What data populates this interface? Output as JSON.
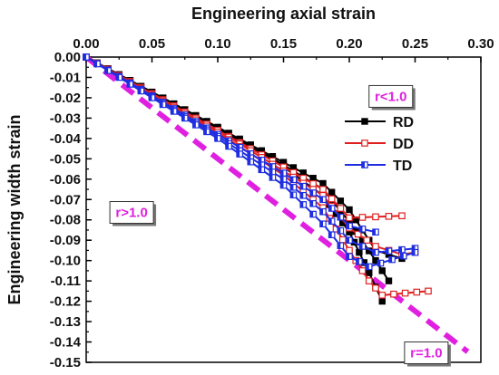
{
  "chart_data": {
    "type": "line",
    "xlabel": "Engineering axial strain",
    "ylabel": "Engineering width strain",
    "xlim": [
      0.0,
      0.3
    ],
    "ylim": [
      -0.15,
      0.0
    ],
    "x_axis_position": "top",
    "x_ticks": [
      "0.00",
      "0.05",
      "0.10",
      "0.15",
      "0.20",
      "0.25",
      "0.30"
    ],
    "y_ticks": [
      "0.00",
      "-0.01",
      "-0.02",
      "-0.03",
      "-0.04",
      "-0.05",
      "-0.06",
      "-0.07",
      "-0.08",
      "-0.09",
      "-0.10",
      "-0.11",
      "-0.12",
      "-0.13",
      "-0.14",
      "-0.15"
    ],
    "grid": false,
    "legend_position": "right",
    "series": [
      {
        "name": "RD",
        "color": "#000000",
        "marker": "filled-square",
        "curves": [
          [
            [
              0.0,
              0.0
            ],
            [
              0.05,
              -0.0172
            ],
            [
              0.1,
              -0.0345
            ],
            [
              0.15,
              -0.0517
            ],
            [
              0.18,
              -0.0621
            ],
            [
              0.2,
              -0.075
            ],
            [
              0.22,
              -0.095
            ],
            [
              0.24,
              -0.099
            ]
          ],
          [
            [
              0.0,
              0.0
            ],
            [
              0.05,
              -0.0172
            ],
            [
              0.1,
              -0.0345
            ],
            [
              0.15,
              -0.053
            ],
            [
              0.18,
              -0.065
            ],
            [
              0.2,
              -0.081
            ],
            [
              0.22,
              -0.1
            ],
            [
              0.23,
              -0.11
            ]
          ],
          [
            [
              0.0,
              0.0
            ],
            [
              0.05,
              -0.0175
            ],
            [
              0.1,
              -0.035
            ],
            [
              0.15,
              -0.054
            ],
            [
              0.18,
              -0.068
            ],
            [
              0.2,
              -0.086
            ],
            [
              0.215,
              -0.106
            ],
            [
              0.225,
              -0.12
            ]
          ]
        ]
      },
      {
        "name": "DD",
        "color": "#e02020",
        "marker": "open-square",
        "curves": [
          [
            [
              0.0,
              0.0
            ],
            [
              0.05,
              -0.018
            ],
            [
              0.1,
              -0.036
            ],
            [
              0.15,
              -0.054
            ],
            [
              0.18,
              -0.065
            ],
            [
              0.2,
              -0.079
            ],
            [
              0.24,
              -0.078
            ]
          ],
          [
            [
              0.0,
              0.0
            ],
            [
              0.05,
              -0.018
            ],
            [
              0.1,
              -0.036
            ],
            [
              0.15,
              -0.056
            ],
            [
              0.18,
              -0.068
            ],
            [
              0.2,
              -0.084
            ],
            [
              0.22,
              -0.093
            ],
            [
              0.24,
              -0.097
            ],
            [
              0.25,
              -0.096
            ]
          ],
          [
            [
              0.0,
              0.0
            ],
            [
              0.05,
              -0.0185
            ],
            [
              0.1,
              -0.037
            ],
            [
              0.15,
              -0.058
            ],
            [
              0.18,
              -0.074
            ],
            [
              0.2,
              -0.095
            ],
            [
              0.215,
              -0.11
            ],
            [
              0.225,
              -0.117
            ],
            [
              0.26,
              -0.115
            ]
          ]
        ]
      },
      {
        "name": "TD",
        "color": "#1f2ee0",
        "marker": "half-filled-square",
        "curves": [
          [
            [
              0.0,
              0.0
            ],
            [
              0.05,
              -0.019
            ],
            [
              0.1,
              -0.038
            ],
            [
              0.15,
              -0.057
            ],
            [
              0.18,
              -0.07
            ],
            [
              0.2,
              -0.083
            ],
            [
              0.22,
              -0.086
            ]
          ],
          [
            [
              0.0,
              0.0
            ],
            [
              0.05,
              -0.0195
            ],
            [
              0.1,
              -0.039
            ],
            [
              0.15,
              -0.06
            ],
            [
              0.18,
              -0.076
            ],
            [
              0.2,
              -0.09
            ],
            [
              0.22,
              -0.096
            ],
            [
              0.25,
              -0.094
            ]
          ],
          [
            [
              0.0,
              0.0
            ],
            [
              0.05,
              -0.02
            ],
            [
              0.1,
              -0.04
            ],
            [
              0.15,
              -0.063
            ],
            [
              0.18,
              -0.082
            ],
            [
              0.2,
              -0.098
            ],
            [
              0.215,
              -0.103
            ],
            [
              0.25,
              -0.096
            ]
          ]
        ]
      }
    ],
    "reference_line": {
      "label": "r=1.0",
      "color": "#e020e0",
      "style": "dashed",
      "points": [
        [
          0.0,
          0.0
        ],
        [
          0.29,
          -0.1448
        ]
      ]
    },
    "annotations": [
      {
        "text": "r<1.0",
        "x": 0.215,
        "y": -0.014
      },
      {
        "text": "r>1.0",
        "x": 0.018,
        "y": -0.071
      },
      {
        "text": "r=1.0",
        "x": 0.242,
        "y": -0.14
      }
    ]
  }
}
